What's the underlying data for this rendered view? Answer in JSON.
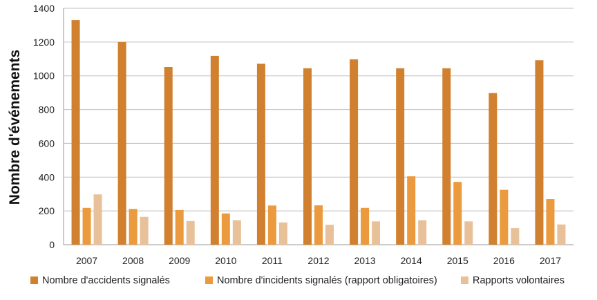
{
  "chart_data": {
    "type": "bar",
    "title": "",
    "xlabel": "",
    "ylabel": "Nombre d'événements",
    "ylim": [
      0,
      1400
    ],
    "yticks": [
      0,
      200,
      400,
      600,
      800,
      1000,
      1200,
      1400
    ],
    "grid": true,
    "legend_position": "bottom",
    "categories": [
      "2007",
      "2008",
      "2009",
      "2010",
      "2011",
      "2012",
      "2013",
      "2014",
      "2015",
      "2016",
      "2017"
    ],
    "series": [
      {
        "name": "Nombre d'accidents signalés",
        "color": "#D0802F",
        "values": [
          1330,
          1200,
          1052,
          1118,
          1072,
          1045,
          1098,
          1045,
          1045,
          898,
          1092
        ]
      },
      {
        "name": "Nombre d'incidents signalés (rapport obligatoires)",
        "color": "#EB9A3E",
        "values": [
          218,
          212,
          205,
          185,
          232,
          233,
          218,
          405,
          372,
          325,
          270
        ]
      },
      {
        "name": "Rapports volontaires",
        "color": "#E8C19A",
        "values": [
          298,
          165,
          140,
          145,
          132,
          118,
          138,
          145,
          138,
          98,
          120
        ]
      }
    ]
  }
}
